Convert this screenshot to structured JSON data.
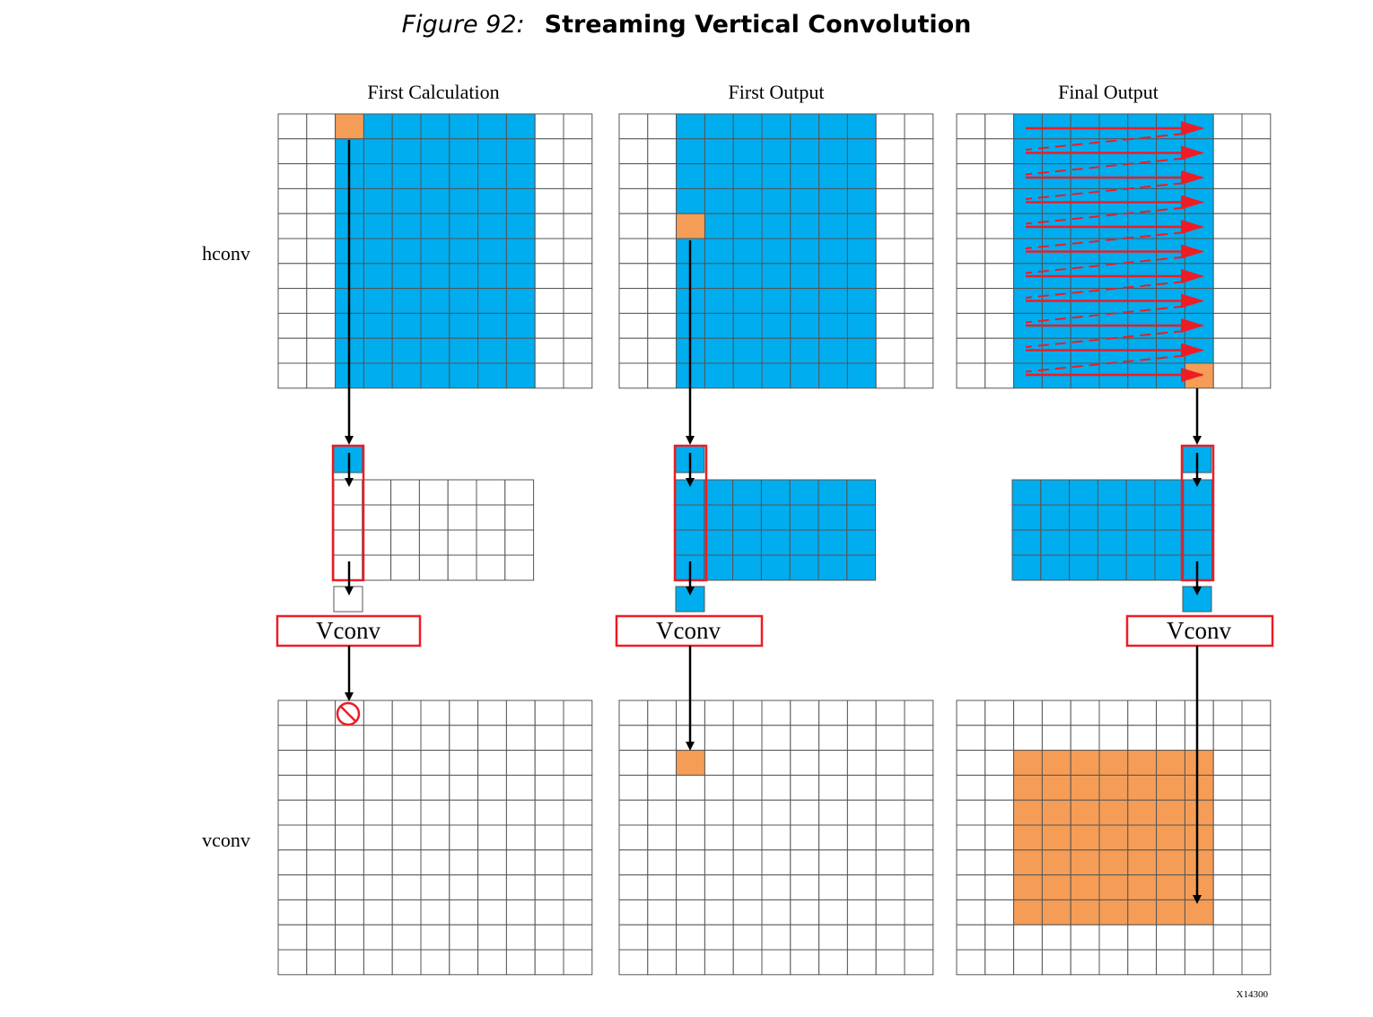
{
  "figure": {
    "number": "Figure 92:",
    "title": "Streaming Vertical Convolution"
  },
  "columns": [
    {
      "heading": "First Calculation",
      "vconv_label": "Vconv"
    },
    {
      "heading": "First Output",
      "vconv_label": "Vconv"
    },
    {
      "heading": "Final Output",
      "vconv_label": "Vconv"
    }
  ],
  "row_labels": {
    "top": "hconv",
    "bottom": "vconv"
  },
  "figure_id": "X14300",
  "colors": {
    "blue": "#00adef",
    "orange": "#f59d56",
    "red": "#ee1c25",
    "grid": "#555555"
  },
  "icons": {
    "blocked": "prohibited-icon"
  }
}
